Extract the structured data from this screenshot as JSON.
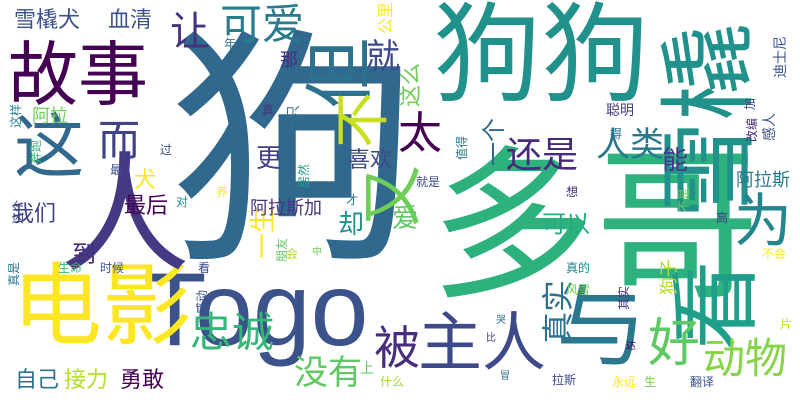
{
  "cloud": {
    "background": "#ffffff",
    "palette": [
      "#440154",
      "#3b528b",
      "#21918c",
      "#5ec962",
      "#fde725"
    ],
    "words": [
      {
        "text": "狗",
        "color": "#30688e"
      },
      {
        "text": "狗狗",
        "color": "#21918c"
      },
      {
        "text": "多哥",
        "color": "#2db27d"
      },
      {
        "text": "Togo",
        "color": "#3b528b"
      },
      {
        "text": "电影",
        "color": "#fde725"
      },
      {
        "text": "人",
        "color": "#443a83"
      },
      {
        "text": "故事",
        "color": "#440154"
      },
      {
        "text": "这",
        "color": "#31688e"
      },
      {
        "text": "雪橇",
        "color": "#21918c"
      },
      {
        "text": "但",
        "color": "#2c728e"
      },
      {
        "text": "不",
        "color": "#c8e020"
      },
      {
        "text": "与",
        "color": "#2a788e"
      },
      {
        "text": "看",
        "color": "#1f9e89"
      },
      {
        "text": "而",
        "color": "#404387"
      },
      {
        "text": "又",
        "color": "#6ece58"
      },
      {
        "text": "为",
        "color": "#25858e"
      },
      {
        "text": "主人",
        "color": "#3e4989"
      },
      {
        "text": "好",
        "color": "#5ec962"
      },
      {
        "text": "被",
        "color": "#472d7b"
      },
      {
        "text": "忠诚",
        "color": "#35b779"
      },
      {
        "text": "动物",
        "color": "#86d549"
      },
      {
        "text": "让",
        "color": "#46327e"
      },
      {
        "text": "可爱",
        "color": "#287c8e"
      },
      {
        "text": "太",
        "color": "#440154"
      },
      {
        "text": "就",
        "color": "#3e4989"
      },
      {
        "text": "还是",
        "color": "#472a7a"
      },
      {
        "text": "人类",
        "color": "#2a778e"
      },
      {
        "text": "没有",
        "color": "#5ec962"
      },
      {
        "text": "真实",
        "color": "#2c728e"
      },
      {
        "text": "雪橇犬",
        "color": "#3b528b"
      },
      {
        "text": "血清",
        "color": "#3b528b"
      },
      {
        "text": "自己",
        "color": "#2c728e"
      },
      {
        "text": "接力",
        "color": "#b5de2b"
      },
      {
        "text": "勇敢",
        "color": "#440154"
      },
      {
        "text": "喜欢",
        "color": "#3e4989"
      },
      {
        "text": "更",
        "color": "#424086"
      },
      {
        "text": "最后",
        "color": "#440154"
      },
      {
        "text": "我们",
        "color": "#404387"
      },
      {
        "text": "可以",
        "color": "#25ab82"
      },
      {
        "text": "一生",
        "color": "#fde725"
      },
      {
        "text": "却",
        "color": "#21918c"
      },
      {
        "text": "爱",
        "color": "#5ec962"
      },
      {
        "text": "能",
        "color": "#443983"
      },
      {
        "text": "一个",
        "color": "#31688e"
      },
      {
        "text": "这么",
        "color": "#6ece58"
      },
      {
        "text": "犬",
        "color": "#fde725"
      },
      {
        "text": "到",
        "color": "#472d7b"
      },
      {
        "text": "阿拉",
        "color": "#6ece58"
      },
      {
        "text": "阿拉斯",
        "color": "#2a788e"
      },
      {
        "text": "阿拉斯加",
        "color": "#46327e"
      },
      {
        "text": "狗子",
        "color": "#b5de2b"
      },
      {
        "text": "公里",
        "color": "#fde725"
      },
      {
        "text": "那",
        "color": "#472c7a"
      },
      {
        "text": "一只",
        "color": "#2a788e"
      },
      {
        "text": "迪士尼",
        "color": "#3b528b"
      },
      {
        "text": "感人",
        "color": "#3b528b"
      },
      {
        "text": "聪明",
        "color": "#443983"
      },
      {
        "text": "真",
        "color": "#46327e"
      },
      {
        "text": "居然",
        "color": "#1f9e89"
      },
      {
        "text": "值得",
        "color": "#2a788e"
      },
      {
        "text": "奔跑",
        "color": "#35b779"
      },
      {
        "text": "这样",
        "color": "#26828e"
      },
      {
        "text": "生命",
        "color": "#35b779"
      },
      {
        "text": "时候",
        "color": "#3b528b"
      },
      {
        "text": "这个",
        "color": "#3e4989"
      },
      {
        "text": "真是",
        "color": "#2a788e"
      },
      {
        "text": "朋友",
        "color": "#5ec962"
      },
      {
        "text": "会",
        "color": "#b5de2b"
      },
      {
        "text": "中",
        "color": "#6ece58"
      },
      {
        "text": "风雪",
        "color": "#6ece58"
      },
      {
        "text": "真的",
        "color": "#25858e"
      },
      {
        "text": "其实",
        "color": "#46327e"
      },
      {
        "text": "不是",
        "color": "#6ece58"
      },
      {
        "text": "不会",
        "color": "#fde725"
      },
      {
        "text": "片",
        "color": "#c8e020"
      },
      {
        "text": "哭",
        "color": "#2c728e"
      },
      {
        "text": "比",
        "color": "#46327e"
      },
      {
        "text": "达",
        "color": "#440154"
      },
      {
        "text": "拉斯",
        "color": "#3e4989"
      },
      {
        "text": "永远",
        "color": "#fde725"
      },
      {
        "text": "生",
        "color": "#6ece58"
      },
      {
        "text": "翻译",
        "color": "#3b528b"
      },
      {
        "text": "改编",
        "color": "#472d7b"
      },
      {
        "text": "什么",
        "color": "#a0da39"
      },
      {
        "text": "上",
        "color": "#5ec962"
      },
      {
        "text": "冒",
        "color": "#31688e"
      },
      {
        "text": "感动",
        "color": "#3b528b"
      },
      {
        "text": "看",
        "color": "#3e4989"
      },
      {
        "text": "对",
        "color": "#21918c"
      },
      {
        "text": "养",
        "color": "#fde725"
      },
      {
        "text": "过",
        "color": "#3e4989"
      },
      {
        "text": "最",
        "color": "#3b528b"
      },
      {
        "text": "年",
        "color": "#2c728e"
      },
      {
        "text": "就是",
        "color": "#3e4989"
      },
      {
        "text": "才",
        "color": "#2a788e"
      },
      {
        "text": "想",
        "color": "#46327e"
      },
      {
        "text": "得",
        "color": "#2c728e"
      },
      {
        "text": "高",
        "color": "#443983"
      },
      {
        "text": "加",
        "color": "#3e4989"
      }
    ]
  }
}
